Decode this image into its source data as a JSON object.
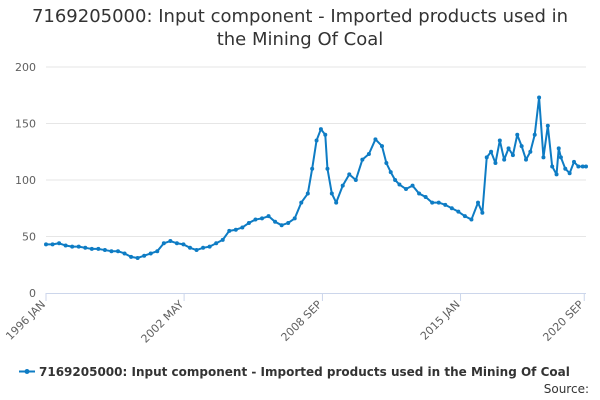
{
  "chart_data": {
    "type": "line",
    "title_lines": [
      "7169205000: Input component - Imported products used in",
      "the Mining Of Coal"
    ],
    "ylim": [
      0,
      200
    ],
    "yticks": [
      "0",
      "50",
      "100",
      "150",
      "200"
    ],
    "xlim": [
      1996.0,
      2020.75
    ],
    "xticks": [
      {
        "label": "1996 JAN",
        "value": 1996.0
      },
      {
        "label": "2002 MAY",
        "value": 2002.33
      },
      {
        "label": "2008 SEP",
        "value": 2008.67
      },
      {
        "label": "2015 JAN",
        "value": 2015.0
      },
      {
        "label": "2020 SEP",
        "value": 2020.67
      }
    ],
    "series": [
      {
        "name": "7169205000: Input component - Imported products used in the Mining Of Coal",
        "color": "#0e7cc4",
        "x": [
          1996.0,
          1996.3,
          1996.6,
          1996.9,
          1997.2,
          1997.5,
          1997.8,
          1998.1,
          1998.4,
          1998.7,
          1999.0,
          1999.3,
          1999.6,
          1999.9,
          2000.2,
          2000.5,
          2000.8,
          2001.1,
          2001.4,
          2001.7,
          2002.0,
          2002.3,
          2002.6,
          2002.9,
          2003.2,
          2003.5,
          2003.8,
          2004.1,
          2004.4,
          2004.7,
          2005.0,
          2005.3,
          2005.6,
          2005.9,
          2006.2,
          2006.5,
          2006.8,
          2007.1,
          2007.4,
          2007.7,
          2008.0,
          2008.2,
          2008.4,
          2008.6,
          2008.8,
          2008.9,
          2009.1,
          2009.3,
          2009.6,
          2009.9,
          2010.2,
          2010.5,
          2010.8,
          2011.1,
          2011.4,
          2011.6,
          2011.8,
          2012.0,
          2012.2,
          2012.5,
          2012.8,
          2013.1,
          2013.4,
          2013.7,
          2014.0,
          2014.3,
          2014.6,
          2014.9,
          2015.2,
          2015.5,
          2015.8,
          2016.0,
          2016.2,
          2016.4,
          2016.6,
          2016.8,
          2017.0,
          2017.2,
          2017.4,
          2017.6,
          2017.8,
          2018.0,
          2018.2,
          2018.4,
          2018.6,
          2018.8,
          2019.0,
          2019.2,
          2019.4,
          2019.5,
          2019.6,
          2019.8,
          2020.0,
          2020.2,
          2020.4,
          2020.6,
          2020.75
        ],
        "values": [
          43,
          43,
          44,
          42,
          41,
          41,
          40,
          39,
          39,
          38,
          37,
          37,
          35,
          32,
          31,
          33,
          35,
          37,
          44,
          46,
          44,
          43,
          40,
          38,
          40,
          41,
          44,
          47,
          55,
          56,
          58,
          62,
          65,
          66,
          68,
          63,
          60,
          62,
          66,
          80,
          88,
          110,
          135,
          145,
          140,
          110,
          88,
          80,
          95,
          105,
          100,
          118,
          123,
          136,
          130,
          115,
          107,
          100,
          96,
          92,
          95,
          88,
          85,
          80,
          80,
          78,
          75,
          72,
          68,
          65,
          80,
          71,
          120,
          125,
          115,
          135,
          118,
          128,
          122,
          140,
          130,
          118,
          125,
          140,
          173,
          120,
          148,
          112,
          105,
          128,
          120,
          110,
          106,
          116,
          112,
          112,
          112
        ]
      }
    ]
  },
  "legend_label": "7169205000: Input component - Imported products used in the Mining Of Coal",
  "source_label": "Source:"
}
